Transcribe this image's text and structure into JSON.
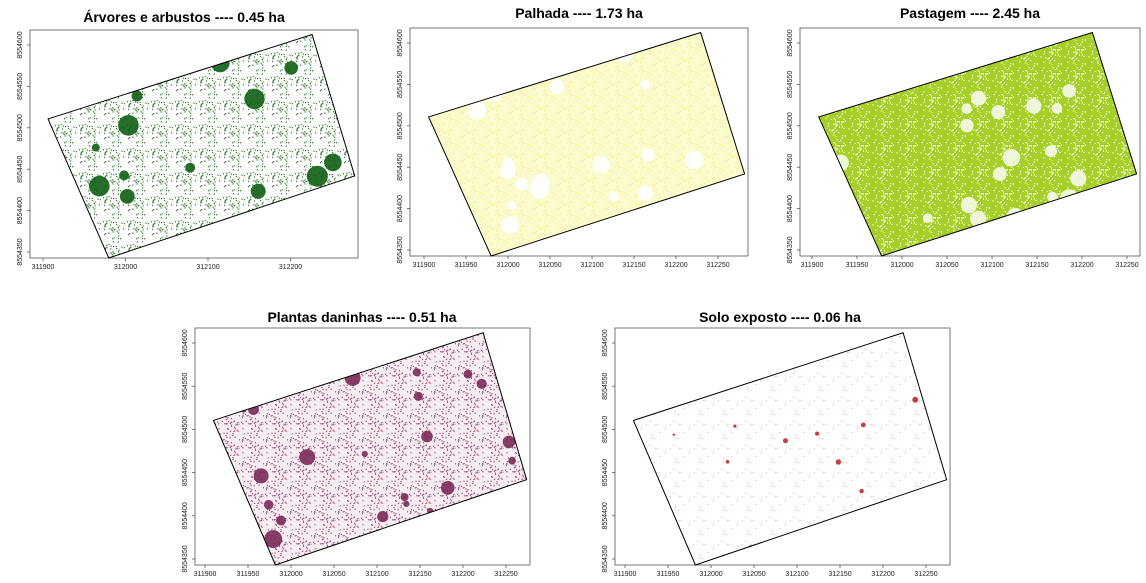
{
  "maps": [
    {
      "title": "Árvores e arbustos ---- 0.45 ha",
      "xticks": [
        311900,
        312000,
        312100,
        312200
      ],
      "yticks": [
        8554350,
        8554400,
        8554450,
        8554500,
        8554550,
        8554600
      ]
    },
    {
      "title": "Palhada ---- 1.73 ha",
      "xticks": [
        311900,
        311950,
        312000,
        312050,
        312100,
        312150,
        312200,
        312250
      ],
      "yticks": [
        8554350,
        8554400,
        8554450,
        8554500,
        8554550,
        8554600
      ]
    },
    {
      "title": "Pastagem ---- 2.45 ha",
      "xticks": [
        311900,
        311950,
        312000,
        312050,
        312100,
        312150,
        312200,
        312250
      ],
      "yticks": [
        8554350,
        8554400,
        8554450,
        8554500,
        8554550,
        8554600
      ]
    },
    {
      "title": "Plantas daninhas ---- 0.51 ha",
      "xticks": [
        311900,
        311950,
        312000,
        312050,
        312100,
        312150,
        312200,
        312250
      ],
      "yticks": [
        8554350,
        8554400,
        8554450,
        8554500,
        8554550,
        8554600
      ]
    },
    {
      "title": "Solo exposto ---- 0.06 ha",
      "xticks": [
        311900,
        311950,
        312000,
        312050,
        312100,
        312150,
        312200,
        312250
      ],
      "yticks": [
        8554350,
        8554400,
        8554450,
        8554500,
        8554550,
        8554600
      ]
    }
  ]
}
